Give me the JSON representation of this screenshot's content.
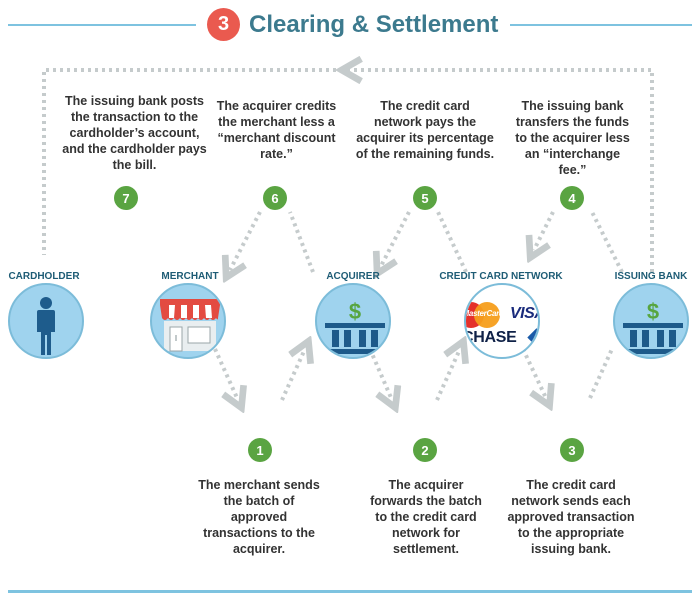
{
  "header": {
    "step_number": "3",
    "title": "Clearing & Settlement"
  },
  "entities": [
    {
      "label": "CARDHOLDER",
      "icon": "person-icon"
    },
    {
      "label": "MERCHANT",
      "icon": "storefront-icon"
    },
    {
      "label": "ACQUIRER",
      "icon": "bank-icon"
    },
    {
      "label": "CREDIT CARD NETWORK",
      "icon": "card-logos-icon",
      "logos": {
        "mastercard": "MasterCard",
        "visa": "VISA",
        "chase": "CHASE"
      }
    },
    {
      "label": "ISSUING BANK",
      "icon": "bank-icon"
    }
  ],
  "steps": [
    {
      "number": "1",
      "text": "The merchant sends the batch of approved transactions to the acquirer."
    },
    {
      "number": "2",
      "text": "The acquirer forwards the batch to the credit card network for settlement."
    },
    {
      "number": "3",
      "text": "The credit card network sends each approved transaction to the appropriate issuing bank."
    },
    {
      "number": "4",
      "text": "The issuing bank transfers the funds to the acquirer less an “interchange fee.”"
    },
    {
      "number": "5",
      "text": "The credit card network pays the acquirer its percentage of the remaining funds."
    },
    {
      "number": "6",
      "text": "The acquirer credits the merchant less a “merchant discount rate.”"
    },
    {
      "number": "7",
      "text": "The issuing bank posts the transaction to the cardholder’s account, and the cardholder pays the bill."
    }
  ],
  "colors": {
    "accent_red": "#ea5a4f",
    "title_teal": "#3c7a8e",
    "step_green": "#5aa442",
    "circle_blue": "#9fd3ee",
    "flow_gray": "#c5cbcc",
    "label_navy": "#1e5c75"
  }
}
